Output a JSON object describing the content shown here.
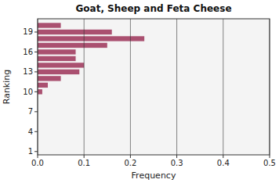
{
  "chart_data": {
    "type": "bar",
    "orientation": "horizontal",
    "title": "Goat, Sheep and Feta Cheese",
    "x_label": "Frequency",
    "y_label": "Ranking",
    "x": [
      10,
      11,
      12,
      13,
      14,
      15,
      16,
      17,
      18,
      19,
      20
    ],
    "values": [
      0.01,
      0.022,
      0.05,
      0.09,
      0.1,
      0.082,
      0.082,
      0.15,
      0.23,
      0.16,
      0.05
    ],
    "color": "#aa5070",
    "xlim": [
      0,
      0.5
    ],
    "xticks": [
      {
        "value": 0,
        "label": "0.0"
      },
      0.1,
      0.2,
      0.3,
      0.4,
      0.5
    ],
    "ylim": [
      0.5,
      21
    ],
    "yticks": [
      1,
      4,
      7,
      10,
      13,
      16,
      19
    ],
    "grid": true
  }
}
